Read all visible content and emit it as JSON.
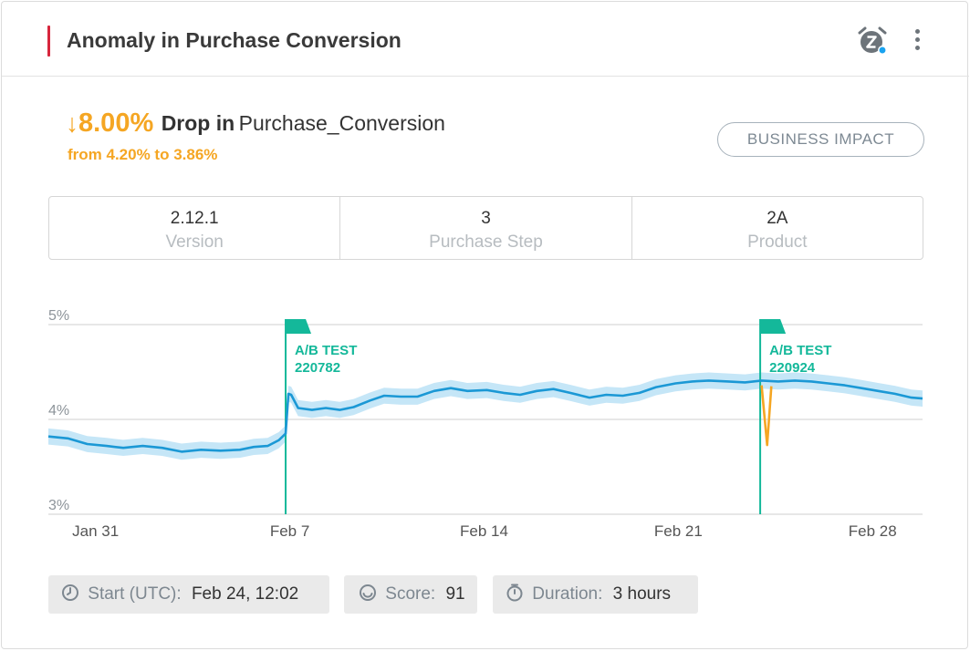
{
  "header": {
    "title": "Anomaly in Purchase Conversion",
    "accent_color": "#d7263d",
    "icons": [
      "snooze-alarm-icon",
      "more-vertical-icon"
    ]
  },
  "summary": {
    "arrow": "↓",
    "change": "8.00%",
    "direction_label": "Drop in",
    "metric": "Purchase_Conversion",
    "range_text": "from 4.20% to 3.86%",
    "highlight_color": "#f5a623",
    "business_impact_label": "BUSINESS IMPACT"
  },
  "dimensions": [
    {
      "value": "2.12.1",
      "key": "Version"
    },
    {
      "value": "3",
      "key": "Purchase Step"
    },
    {
      "value": "2A",
      "key": "Product"
    }
  ],
  "footer": {
    "start_label": "Start (UTC):",
    "start_value": "Feb 24, 12:02",
    "score_label": "Score:",
    "score_value": "91",
    "duration_label": "Duration:",
    "duration_value": "3 hours"
  },
  "chart_data": {
    "type": "line",
    "y_ticks": [
      "5%",
      "4%",
      "3%"
    ],
    "ylim": [
      3,
      5
    ],
    "x_ticks": [
      "Jan 31",
      "Feb 7",
      "Feb 14",
      "Feb 21",
      "Feb 28"
    ],
    "x_tick_days": [
      0,
      7,
      14,
      21,
      28
    ],
    "xlim": [
      -1.7,
      29.8
    ],
    "line_color": "#1b98d5",
    "band_color": "#bfe3f6",
    "anomaly_color": "#f5a623",
    "marker_color": "#14b89a",
    "series": [
      {
        "values": [
          [
            -1.7,
            3.82
          ],
          [
            -1.0,
            3.8
          ],
          [
            -0.3,
            3.74
          ],
          [
            0.4,
            3.72
          ],
          [
            1.0,
            3.7
          ],
          [
            1.7,
            3.72
          ],
          [
            2.4,
            3.7
          ],
          [
            3.1,
            3.66
          ],
          [
            3.8,
            3.68
          ],
          [
            4.5,
            3.67
          ],
          [
            5.2,
            3.68
          ],
          [
            5.7,
            3.71
          ],
          [
            6.2,
            3.72
          ],
          [
            6.6,
            3.78
          ],
          [
            6.85,
            3.85
          ],
          [
            6.95,
            4.27
          ],
          [
            7.05,
            4.26
          ],
          [
            7.3,
            4.12
          ],
          [
            7.8,
            4.1
          ],
          [
            8.3,
            4.12
          ],
          [
            8.8,
            4.1
          ],
          [
            9.3,
            4.13
          ],
          [
            9.9,
            4.2
          ],
          [
            10.4,
            4.25
          ],
          [
            11.0,
            4.24
          ],
          [
            11.6,
            4.24
          ],
          [
            12.2,
            4.3
          ],
          [
            12.8,
            4.33
          ],
          [
            13.4,
            4.3
          ],
          [
            14.1,
            4.31
          ],
          [
            14.7,
            4.28
          ],
          [
            15.3,
            4.26
          ],
          [
            15.9,
            4.3
          ],
          [
            16.5,
            4.32
          ],
          [
            17.1,
            4.28
          ],
          [
            17.8,
            4.23
          ],
          [
            18.4,
            4.26
          ],
          [
            19.0,
            4.25
          ],
          [
            19.6,
            4.28
          ],
          [
            20.2,
            4.34
          ],
          [
            20.9,
            4.38
          ],
          [
            21.5,
            4.4
          ],
          [
            22.1,
            4.41
          ],
          [
            22.8,
            4.4
          ],
          [
            23.4,
            4.39
          ],
          [
            24.0,
            4.41
          ],
          [
            24.6,
            4.4
          ],
          [
            25.2,
            4.41
          ],
          [
            25.8,
            4.4
          ],
          [
            26.4,
            4.38
          ],
          [
            27.0,
            4.36
          ],
          [
            27.6,
            4.33
          ],
          [
            28.2,
            4.3
          ],
          [
            28.8,
            4.27
          ],
          [
            29.4,
            4.23
          ],
          [
            29.8,
            4.22
          ]
        ]
      }
    ],
    "anomaly_points": [
      [
        24.0,
        4.36
      ],
      [
        24.2,
        3.73
      ],
      [
        24.35,
        4.35
      ]
    ],
    "markers": [
      {
        "day": 6.85,
        "label": "A/B TEST",
        "id": "220782"
      },
      {
        "day": 23.95,
        "label": "A/B TEST",
        "id": "220924"
      }
    ],
    "grid": true
  }
}
